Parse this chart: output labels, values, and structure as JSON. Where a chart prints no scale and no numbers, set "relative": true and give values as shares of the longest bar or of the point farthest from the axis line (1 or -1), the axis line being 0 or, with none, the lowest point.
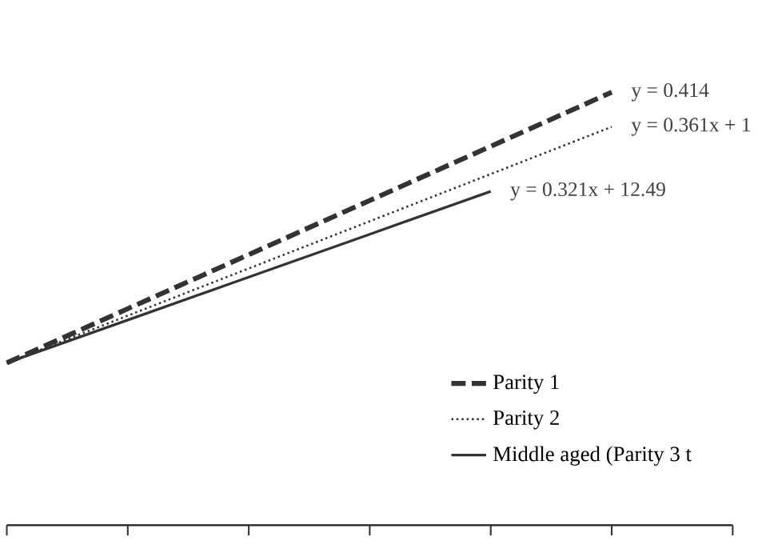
{
  "chart_data": {
    "type": "line",
    "relative": true,
    "categories": [
      null,
      null,
      null,
      null,
      null,
      null,
      null
    ],
    "series": [
      {
        "name": "Parity 1",
        "color": "#333333",
        "line_style": "dashed",
        "values": [
          0.375,
          0.5,
          0.625,
          0.75,
          0.875,
          1,
          null
        ]
      },
      {
        "name": "Parity 2",
        "color": "#333333",
        "line_style": "dotted",
        "values": [
          0.375,
          0.484,
          0.593,
          0.702,
          0.811,
          0.92,
          null
        ]
      },
      {
        "name": "Middle aged (Parity 3 t",
        "color": "#333333",
        "line_style": "solid",
        "values": [
          0.375,
          0.474,
          0.573,
          0.672,
          0.771,
          null,
          null
        ]
      }
    ],
    "annotations": [
      "y = 0.414",
      "y = 0.361x + 1",
      "y = 0.321x + 12.49"
    ],
    "legend": "bottom right",
    "marker": "none"
  }
}
